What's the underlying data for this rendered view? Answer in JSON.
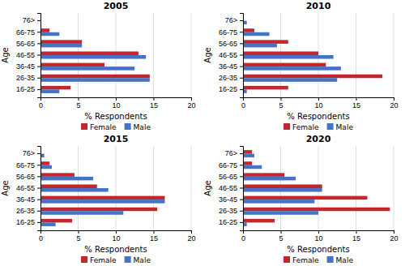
{
  "chart_data": [
    {
      "type": "bar",
      "orientation": "horizontal",
      "title": "2005",
      "categories": [
        "16-25",
        "26-35",
        "36-45",
        "46-55",
        "56-65",
        "66-75",
        "76>"
      ],
      "series": [
        {
          "name": "Female",
          "color": "#C1272D",
          "values": [
            4.0,
            14.5,
            8.5,
            13.0,
            5.5,
            1.2,
            0.0
          ]
        },
        {
          "name": "Male",
          "color": "#4472C4",
          "values": [
            2.5,
            14.5,
            12.5,
            14.0,
            5.5,
            2.5,
            0.0
          ]
        }
      ],
      "xlabel": "% Respondents",
      "ylabel": "Age",
      "xlim": [
        0,
        20
      ],
      "xticks": [
        0,
        5,
        10,
        15,
        20
      ],
      "grid": true,
      "legend": "bottom"
    },
    {
      "type": "bar",
      "orientation": "horizontal",
      "title": "2010",
      "categories": [
        "16-25",
        "26-35",
        "36-45",
        "46-55",
        "56-65",
        "66-75",
        "76>"
      ],
      "series": [
        {
          "name": "Female",
          "color": "#C1272D",
          "values": [
            6.0,
            18.5,
            11.0,
            10.0,
            6.0,
            1.5,
            0.0
          ]
        },
        {
          "name": "Male",
          "color": "#4472C4",
          "values": [
            0.5,
            12.5,
            13.0,
            12.0,
            4.5,
            3.5,
            0.5
          ]
        }
      ],
      "xlabel": "% Respondents",
      "ylabel": "Age",
      "xlim": [
        0,
        20
      ],
      "xticks": [
        0,
        5,
        10,
        15,
        20
      ],
      "grid": true,
      "legend": "bottom"
    },
    {
      "type": "bar",
      "orientation": "horizontal",
      "title": "2015",
      "categories": [
        "16-25",
        "26-35",
        "36-45",
        "46-55",
        "56-65",
        "66-75",
        "76>"
      ],
      "series": [
        {
          "name": "Female",
          "color": "#C1272D",
          "values": [
            4.2,
            15.5,
            16.5,
            7.5,
            4.5,
            1.2,
            0.0
          ]
        },
        {
          "name": "Male",
          "color": "#4472C4",
          "values": [
            2.0,
            11.0,
            16.5,
            9.0,
            7.0,
            1.5,
            0.5
          ]
        }
      ],
      "xlabel": "% Respondents",
      "ylabel": "Age",
      "xlim": [
        0,
        20
      ],
      "xticks": [
        0,
        5,
        10,
        15,
        20
      ],
      "grid": true,
      "legend": "bottom"
    },
    {
      "type": "bar",
      "orientation": "horizontal",
      "title": "2020",
      "categories": [
        "16-25",
        "26-35",
        "36-45",
        "46-55",
        "56-65",
        "66-75",
        "76>"
      ],
      "series": [
        {
          "name": "Female",
          "color": "#C1272D",
          "values": [
            4.2,
            19.5,
            16.5,
            10.5,
            5.5,
            1.2,
            1.2
          ]
        },
        {
          "name": "Male",
          "color": "#4472C4",
          "values": [
            0.5,
            10.0,
            9.5,
            10.5,
            7.0,
            2.5,
            1.5
          ]
        }
      ],
      "xlabel": "% Respondents",
      "ylabel": "Age",
      "xlim": [
        0,
        20
      ],
      "xticks": [
        0,
        5,
        10,
        15,
        20
      ],
      "grid": true,
      "legend": "bottom"
    }
  ]
}
